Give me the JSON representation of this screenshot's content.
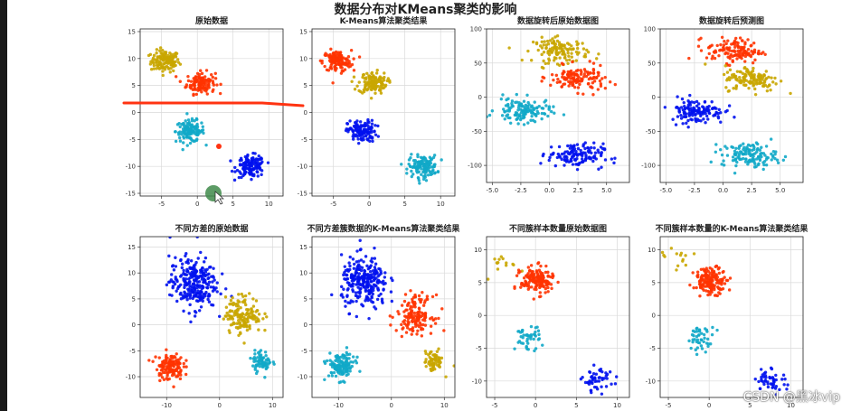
{
  "suptitle": "数据分布对KMeans聚类的影响",
  "watermark": "CSDN @黑冰vip",
  "colors": {
    "red": "#ff3300",
    "yellow": "#c9a600",
    "blue": "#0011ee",
    "cyan": "#11a9c8",
    "annot": "#ff3311",
    "marker": "#3f8a4a"
  },
  "chart_data": [
    {
      "type": "scatter",
      "title": "原始数据",
      "xlim": [
        -8,
        12
      ],
      "ylim": [
        -15.5,
        15.5
      ],
      "xticks": [
        -5,
        0,
        5,
        10
      ],
      "yticks": [
        -15,
        -10,
        -5,
        0,
        5,
        10,
        15
      ],
      "series": [
        {
          "color": "yellow",
          "cx": -4.5,
          "cy": 9.5,
          "sx": 1.0,
          "sy": 1.0,
          "n": 130
        },
        {
          "color": "red",
          "cx": 0.5,
          "cy": 5.5,
          "sx": 1.0,
          "sy": 1.0,
          "n": 130
        },
        {
          "color": "cyan",
          "cx": -1.0,
          "cy": -3.5,
          "sx": 1.0,
          "sy": 1.0,
          "n": 130
        },
        {
          "color": "blue",
          "cx": 7.5,
          "cy": -10.0,
          "sx": 1.0,
          "sy": 1.0,
          "n": 130
        }
      ]
    },
    {
      "type": "scatter",
      "title": "K-Means算法聚类结果",
      "xlim": [
        -8,
        12
      ],
      "ylim": [
        -15.5,
        15.5
      ],
      "xticks": [
        -5,
        0,
        5,
        10
      ],
      "yticks": [
        -15,
        -10,
        -5,
        0,
        5,
        10,
        15
      ],
      "series": [
        {
          "color": "red",
          "cx": -4.5,
          "cy": 9.5,
          "sx": 1.0,
          "sy": 1.0,
          "n": 130
        },
        {
          "color": "yellow",
          "cx": 0.5,
          "cy": 5.5,
          "sx": 1.0,
          "sy": 1.0,
          "n": 130
        },
        {
          "color": "blue",
          "cx": -1.0,
          "cy": -3.5,
          "sx": 1.0,
          "sy": 1.0,
          "n": 130
        },
        {
          "color": "cyan",
          "cx": 7.5,
          "cy": -10.0,
          "sx": 1.0,
          "sy": 1.0,
          "n": 130
        }
      ]
    },
    {
      "type": "scatter",
      "title": "数据旋转后原始数据图",
      "xlim": [
        -5.5,
        7
      ],
      "ylim": [
        -125,
        100
      ],
      "xticks": [
        -5.0,
        -2.5,
        0.0,
        2.5,
        5.0
      ],
      "yticks": [
        -100,
        -50,
        0,
        50,
        100
      ],
      "series": [
        {
          "color": "yellow",
          "cx": 1.0,
          "cy": 68,
          "sx": 1.2,
          "sy": 9,
          "n": 130,
          "rot": -0.06
        },
        {
          "color": "red",
          "cx": 2.5,
          "cy": 27,
          "sx": 1.2,
          "sy": 9,
          "n": 130,
          "rot": -0.06
        },
        {
          "color": "cyan",
          "cx": -2.3,
          "cy": -20,
          "sx": 1.2,
          "sy": 9,
          "n": 130,
          "rot": -0.06
        },
        {
          "color": "blue",
          "cx": 2.3,
          "cy": -85,
          "sx": 1.2,
          "sy": 9,
          "n": 130,
          "rot": -0.06
        }
      ]
    },
    {
      "type": "scatter",
      "title": "数据旋转后预测图",
      "xlim": [
        -5.5,
        7
      ],
      "ylim": [
        -125,
        100
      ],
      "xticks": [
        -5.0,
        -2.5,
        0.0,
        2.5,
        5.0
      ],
      "yticks": [
        -100,
        -50,
        0,
        50,
        100
      ],
      "series": [
        {
          "color": "red",
          "cx": 1.0,
          "cy": 68,
          "sx": 1.2,
          "sy": 9,
          "n": 130,
          "rot": -0.06
        },
        {
          "color": "yellow",
          "cx": 2.5,
          "cy": 27,
          "sx": 1.2,
          "sy": 9,
          "n": 130,
          "rot": -0.06
        },
        {
          "color": "blue",
          "cx": -2.3,
          "cy": -20,
          "sx": 1.2,
          "sy": 9,
          "n": 130,
          "rot": -0.06
        },
        {
          "color": "cyan",
          "cx": 2.3,
          "cy": -85,
          "sx": 1.2,
          "sy": 9,
          "n": 130,
          "rot": -0.06
        }
      ]
    },
    {
      "type": "scatter",
      "title": "不同方差的原始数据",
      "xlim": [
        -15,
        12
      ],
      "ylim": [
        -14,
        17
      ],
      "xticks": [
        -10,
        0,
        10
      ],
      "yticks": [
        -10,
        -5,
        0,
        5,
        10,
        15
      ],
      "series": [
        {
          "color": "blue",
          "cx": -5.0,
          "cy": 8.0,
          "sx": 2.2,
          "sy": 2.5,
          "n": 260
        },
        {
          "color": "yellow",
          "cx": 4.5,
          "cy": 2.0,
          "sx": 1.7,
          "sy": 1.8,
          "n": 150
        },
        {
          "color": "red",
          "cx": -9.5,
          "cy": -8.0,
          "sx": 1.3,
          "sy": 1.3,
          "n": 130
        },
        {
          "color": "cyan",
          "cx": 8.0,
          "cy": -7.0,
          "sx": 0.9,
          "sy": 1.0,
          "n": 70
        }
      ]
    },
    {
      "type": "scatter",
      "title": "不同方差簇数据的K-Means算法聚类结果",
      "xlim": [
        -15,
        12
      ],
      "ylim": [
        -14,
        17
      ],
      "xticks": [
        -10,
        0,
        10
      ],
      "yticks": [
        -10,
        -5,
        0,
        5,
        10,
        15
      ],
      "series": [
        {
          "color": "blue",
          "cx": -5.0,
          "cy": 8.0,
          "sx": 2.2,
          "sy": 2.5,
          "n": 260
        },
        {
          "color": "red",
          "cx": 4.5,
          "cy": 2.0,
          "sx": 1.7,
          "sy": 1.8,
          "n": 150
        },
        {
          "color": "cyan",
          "cx": -9.5,
          "cy": -8.0,
          "sx": 1.3,
          "sy": 1.3,
          "n": 130
        },
        {
          "color": "yellow",
          "cx": 8.0,
          "cy": -7.0,
          "sx": 0.9,
          "sy": 1.0,
          "n": 70
        }
      ]
    },
    {
      "type": "scatter",
      "title": "不同簇样本数量原始数据图",
      "xlim": [
        -6,
        11.5
      ],
      "ylim": [
        -12.5,
        12
      ],
      "xticks": [
        -5,
        0,
        5,
        10
      ],
      "yticks": [
        -10,
        -5,
        0,
        5,
        10
      ],
      "series": [
        {
          "color": "yellow",
          "cx": -3.8,
          "cy": 8.2,
          "sx": 0.9,
          "sy": 1.0,
          "n": 14
        },
        {
          "color": "red",
          "cx": 0.2,
          "cy": 5.3,
          "sx": 1.0,
          "sy": 1.0,
          "n": 160
        },
        {
          "color": "cyan",
          "cx": -1.0,
          "cy": -3.5,
          "sx": 0.8,
          "sy": 0.9,
          "n": 45
        },
        {
          "color": "blue",
          "cx": 7.6,
          "cy": -9.8,
          "sx": 0.9,
          "sy": 0.9,
          "n": 50
        }
      ]
    },
    {
      "type": "scatter",
      "title": "不同簇样本数量的K-Means算法聚类结果",
      "xlim": [
        -6,
        11.5
      ],
      "ylim": [
        -12.5,
        12
      ],
      "xticks": [
        -5,
        0,
        5,
        10
      ],
      "yticks": [
        -10,
        -5,
        0,
        5,
        10
      ],
      "series": [
        {
          "color": "yellow",
          "cx": -3.8,
          "cy": 8.2,
          "sx": 0.9,
          "sy": 1.0,
          "n": 14
        },
        {
          "color": "red",
          "cx": 0.2,
          "cy": 5.3,
          "sx": 1.0,
          "sy": 1.0,
          "n": 160
        },
        {
          "color": "cyan",
          "cx": -1.0,
          "cy": -3.5,
          "sx": 0.8,
          "sy": 0.9,
          "n": 45
        },
        {
          "color": "blue",
          "cx": 7.6,
          "cy": -9.8,
          "sx": 0.9,
          "sy": 0.9,
          "n": 50
        }
      ]
    }
  ]
}
